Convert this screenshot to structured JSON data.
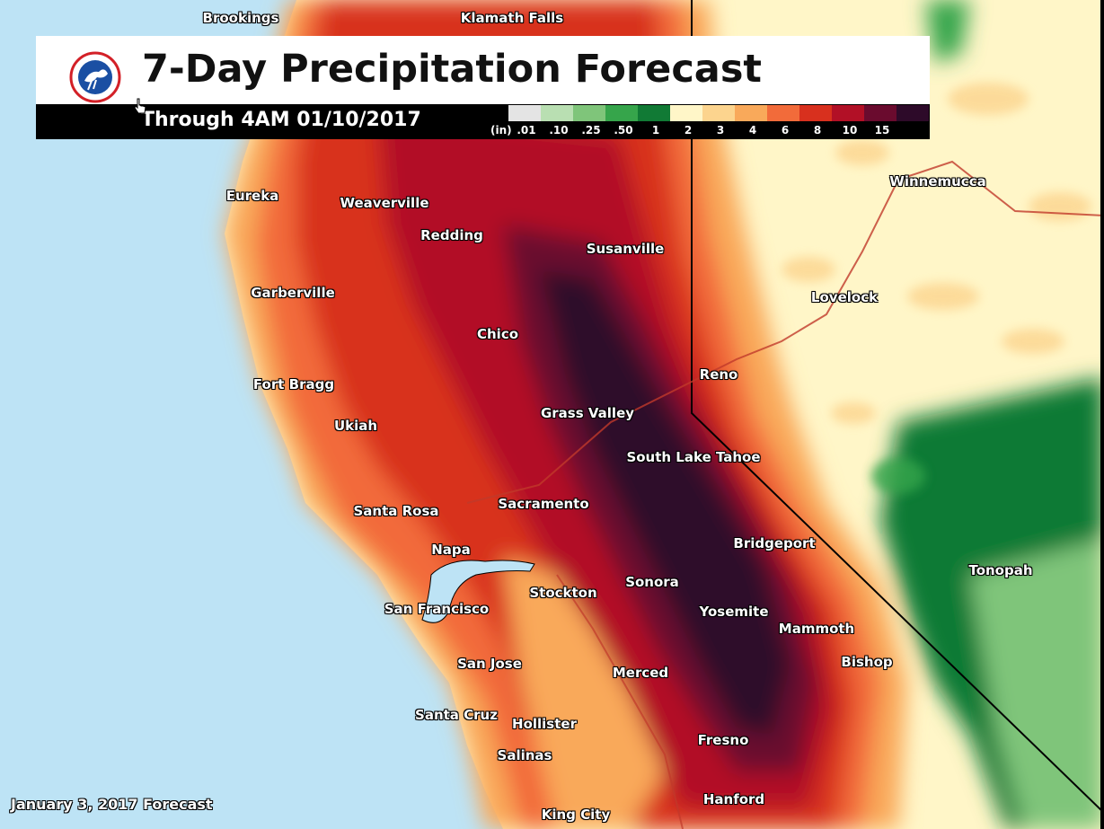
{
  "title": "7-Day Precipitation Forecast",
  "subtitle": "Through 4AM 01/10/2017",
  "forecast_date": "January 3, 2017 Forecast",
  "legend": {
    "unit": "(in)",
    "bins": [
      {
        "label": ".01",
        "color": "#e4e4e4"
      },
      {
        "label": ".10",
        "color": "#b9dfb2"
      },
      {
        "label": ".25",
        "color": "#7fc57a"
      },
      {
        "label": ".50",
        "color": "#36a54b"
      },
      {
        "label": "1",
        "color": "#117a35"
      },
      {
        "label": "2",
        "color": "#fff6c8"
      },
      {
        "label": "3",
        "color": "#fcd48e"
      },
      {
        "label": "4",
        "color": "#f9a95a"
      },
      {
        "label": "6",
        "color": "#f26b3a"
      },
      {
        "label": "8",
        "color": "#d8301e"
      },
      {
        "label": "10",
        "color": "#b21026"
      },
      {
        "label": "15",
        "color": "#6a0b2e"
      },
      {
        "label": "",
        "color": "#2d0a29"
      }
    ]
  },
  "colors": {
    "ocean": "#bde3f5",
    "land_dry": "#fff6c8",
    "border": "#000000",
    "highway": "#c0392b"
  },
  "cities": {
    "brookings": "Brookings",
    "klamath_falls": "Klamath Falls",
    "eureka": "Eureka",
    "weaverville": "Weaverville",
    "redding": "Redding",
    "susanville": "Susanville",
    "winnemucca": "Winnemucca",
    "garberville": "Garberville",
    "lovelock": "Lovelock",
    "chico": "Chico",
    "reno": "Reno",
    "fort_bragg": "Fort Bragg",
    "grass_valley": "Grass Valley",
    "ukiah": "Ukiah",
    "south_lake_tahoe": "South Lake Tahoe",
    "santa_rosa": "Santa Rosa",
    "sacramento": "Sacramento",
    "bridgeport": "Bridgeport",
    "napa": "Napa",
    "tonopah": "Tonopah",
    "sonora": "Sonora",
    "stockton": "Stockton",
    "san_francisco": "San Francisco",
    "yosemite": "Yosemite",
    "mammoth": "Mammoth",
    "bishop": "Bishop",
    "san_jose": "San Jose",
    "merced": "Merced",
    "santa_cruz": "Santa Cruz",
    "hollister": "Hollister",
    "fresno": "Fresno",
    "salinas": "Salinas",
    "hanford": "Hanford",
    "king_city": "King City"
  }
}
